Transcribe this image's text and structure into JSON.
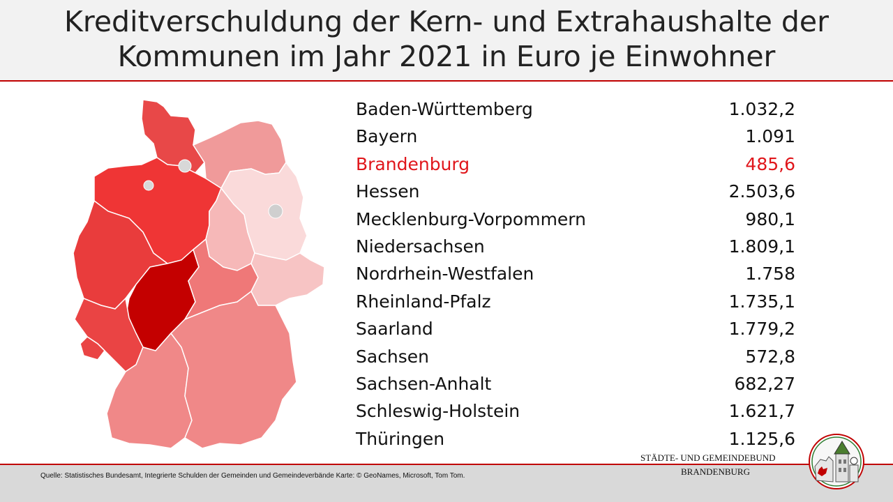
{
  "title": {
    "line1": "Kreditverschuldung der Kern- und Extrahaushalte der",
    "line2": "Kommunen im Jahr 2021 in Euro je Einwohner"
  },
  "colors": {
    "accent": "#c00000",
    "highlight_text": "#e0161b",
    "header_bg": "#f2f2f2",
    "footer_bg": "#d9d9d9"
  },
  "rows": [
    {
      "state": "Baden-Württemberg",
      "value": "1.032,2"
    },
    {
      "state": "Bayern",
      "value": "1.091"
    },
    {
      "state": "Brandenburg",
      "value": "485,6",
      "highlight": true
    },
    {
      "state": "Hessen",
      "value": "2.503,6"
    },
    {
      "state": "Mecklenburg-Vorpommern",
      "value": "980,1"
    },
    {
      "state": "Niedersachsen",
      "value": "1.809,1"
    },
    {
      "state": "Nordrhein-Westfalen",
      "value": "1.758"
    },
    {
      "state": "Rheinland-Pfalz",
      "value": "1.735,1"
    },
    {
      "state": "Saarland",
      "value": "1.779,2"
    },
    {
      "state": "Sachsen",
      "value": "572,8"
    },
    {
      "state": "Sachsen-Anhalt",
      "value": "682,27"
    },
    {
      "state": "Schleswig-Holstein",
      "value": "1.621,7"
    },
    {
      "state": "Thüringen",
      "value": "1.125,6"
    }
  ],
  "map": {
    "fills": {
      "SH": "#e84848",
      "MV": "#f09a9a",
      "NI": "#ef3535",
      "HB": "#d8d8d8",
      "HH": "#d8d8d8",
      "BB": "#fadada",
      "BE": "#cfcfcf",
      "ST": "#f6b8b8",
      "NW": "#e93c3c",
      "HE": "#c40000",
      "TH": "#ef7878",
      "SN": "#f7c4c4",
      "RP": "#ea4444",
      "SL": "#ea4444",
      "BW": "#f08888",
      "BY": "#f08888"
    }
  },
  "footer": {
    "source": "Quelle: Statistisches Bundesamt, Integrierte Schulden der Gemeinden und Gemeindeverbände  Karte: © GeoNames, Microsoft, Tom Tom.",
    "org_line1": "STÄDTE-  UND GEMEINDEBUND",
    "org_line2": "BRANDENBURG"
  }
}
